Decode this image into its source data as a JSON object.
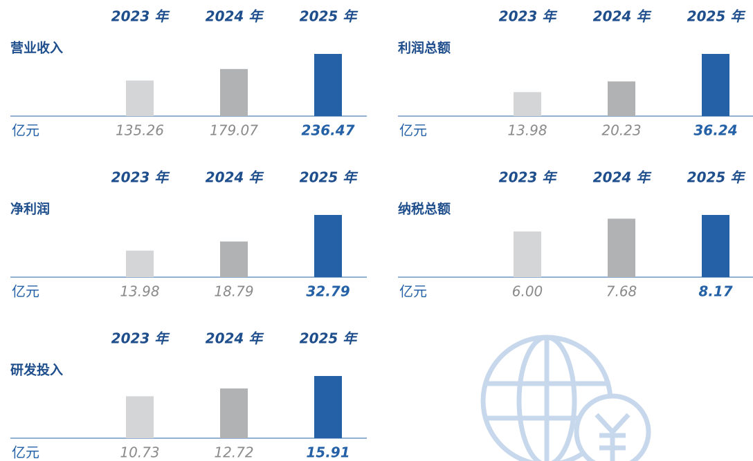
{
  "chart_data": [
    {
      "type": "bar",
      "title": "营业收入",
      "unit": "亿元",
      "categories": [
        "2023 年",
        "2024 年",
        "2025 年"
      ],
      "values": [
        135.26,
        179.07,
        236.47
      ],
      "value_labels": [
        "135.26",
        "179.07",
        "236.47"
      ],
      "colors": [
        "#d4d5d7",
        "#b1b2b4",
        "#2461a6"
      ]
    },
    {
      "type": "bar",
      "title": "利润总额",
      "unit": "亿元",
      "categories": [
        "2023 年",
        "2024 年",
        "2025 年"
      ],
      "values": [
        13.98,
        20.23,
        36.24
      ],
      "value_labels": [
        "13.98",
        "20.23",
        "36.24"
      ],
      "colors": [
        "#d4d5d7",
        "#b1b2b4",
        "#2461a6"
      ]
    },
    {
      "type": "bar",
      "title": "净利润",
      "unit": "亿元",
      "categories": [
        "2023 年",
        "2024 年",
        "2025 年"
      ],
      "values": [
        13.98,
        18.79,
        32.79
      ],
      "value_labels": [
        "13.98",
        "18.79",
        "32.79"
      ],
      "colors": [
        "#d4d5d7",
        "#b1b2b4",
        "#2461a6"
      ]
    },
    {
      "type": "bar",
      "title": "纳税总额",
      "unit": "亿元",
      "categories": [
        "2023 年",
        "2024 年",
        "2025 年"
      ],
      "values": [
        6.0,
        7.68,
        8.17
      ],
      "value_labels": [
        "6.00",
        "7.68",
        "8.17"
      ],
      "colors": [
        "#d4d5d7",
        "#b1b2b4",
        "#2461a6"
      ]
    },
    {
      "type": "bar",
      "title": "研发投入",
      "unit": "亿元",
      "categories": [
        "2023 年",
        "2024 年",
        "2025 年"
      ],
      "values": [
        10.73,
        12.72,
        15.91
      ],
      "value_labels": [
        "10.73",
        "12.72",
        "15.91"
      ],
      "colors": [
        "#d4d5d7",
        "#b1b2b4",
        "#2461a6"
      ]
    }
  ]
}
